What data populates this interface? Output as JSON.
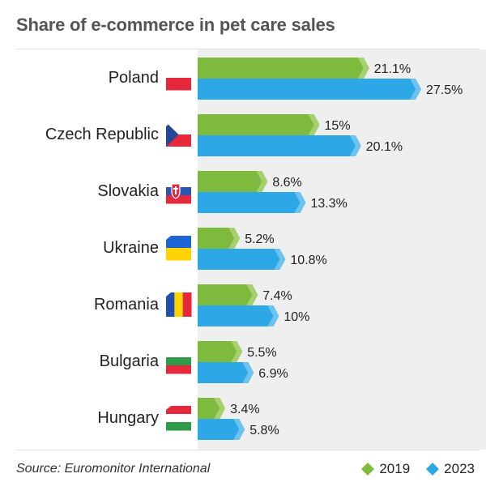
{
  "title": "Share of e-commerce in pet care sales",
  "source": "Source: Euromonitor International",
  "colors": {
    "2019": "#7dba3e",
    "2023": "#2ea7e6",
    "2019_tip": "#a6d06e",
    "2023_tip": "#6cc3f0"
  },
  "chart_data": {
    "type": "bar",
    "orientation": "horizontal",
    "categories": [
      "Poland",
      "Czech Republic",
      "Slovakia",
      "Ukraine",
      "Romania",
      "Bulgaria",
      "Hungary"
    ],
    "series": [
      {
        "name": "2019",
        "values": [
          21.1,
          15,
          8.6,
          5.2,
          7.4,
          5.5,
          3.4
        ],
        "labels": [
          "21.1%",
          "15%",
          "8.6%",
          "5.2%",
          "7.4%",
          "5.5%",
          "3.4%"
        ]
      },
      {
        "name": "2023",
        "values": [
          27.5,
          20.1,
          13.3,
          10.8,
          10,
          6.9,
          5.8
        ],
        "labels": [
          "27.5%",
          "20.1%",
          "13.3%",
          "10.8%",
          "10%",
          "6.9%",
          "5.8%"
        ]
      }
    ],
    "unit": "%",
    "xlim": [
      0,
      27.5
    ],
    "grid": false,
    "legend": "bottom-right"
  },
  "flags": [
    {
      "country": "Poland",
      "icon": "poland-flag-icon",
      "stripes": "horizontal",
      "colors": [
        "#ffffff",
        "#e6283c"
      ]
    },
    {
      "country": "Czech Republic",
      "icon": "czech-flag-icon",
      "stripes": "czech",
      "colors": [
        "#ffffff",
        "#e6283c",
        "#24479a"
      ]
    },
    {
      "country": "Slovakia",
      "icon": "slovakia-flag-icon",
      "stripes": "horizontal",
      "colors": [
        "#ffffff",
        "#2a56b8",
        "#e6283c"
      ]
    },
    {
      "country": "Ukraine",
      "icon": "ukraine-flag-icon",
      "stripes": "horizontal",
      "colors": [
        "#1f64d4",
        "#ffd400"
      ]
    },
    {
      "country": "Romania",
      "icon": "romania-flag-icon",
      "stripes": "vertical",
      "colors": [
        "#1f4fb0",
        "#ffd400",
        "#e6283c"
      ]
    },
    {
      "country": "Bulgaria",
      "icon": "bulgaria-flag-icon",
      "stripes": "horizontal",
      "colors": [
        "#ffffff",
        "#2e9b4a",
        "#e6283c"
      ]
    },
    {
      "country": "Hungary",
      "icon": "hungary-flag-icon",
      "stripes": "horizontal",
      "colors": [
        "#e6283c",
        "#ffffff",
        "#2e9b4a"
      ]
    }
  ]
}
